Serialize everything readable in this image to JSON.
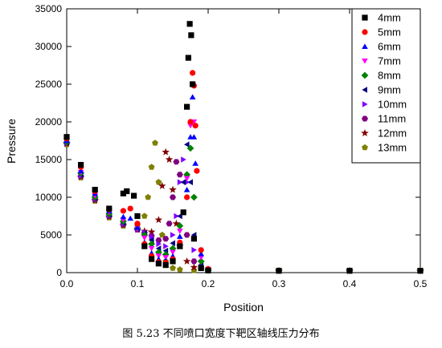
{
  "caption": "图 5.23 不同喷口宽度下靶区轴线压力分布",
  "chart_data": {
    "type": "scatter",
    "xlabel": "Position",
    "ylabel": "Pressure",
    "xlim": [
      0.0,
      0.5
    ],
    "ylim": [
      0,
      35000
    ],
    "xticks": [
      0.0,
      0.1,
      0.2,
      0.3,
      0.4,
      0.5
    ],
    "xtick_labels": [
      "0.0",
      "0.1",
      "0.2",
      "0.3",
      "0.4",
      "0.5"
    ],
    "yticks": [
      0,
      5000,
      10000,
      15000,
      20000,
      25000,
      30000,
      35000
    ],
    "ytick_labels": [
      "0",
      "5000",
      "10000",
      "15000",
      "20000",
      "25000",
      "30000",
      "35000"
    ],
    "grid": false,
    "legend_position": "top-right",
    "series": [
      {
        "name": "4mm",
        "color": "#000000",
        "marker": "square",
        "x": [
          0.0,
          0.02,
          0.04,
          0.06,
          0.08,
          0.085,
          0.095,
          0.1,
          0.11,
          0.12,
          0.13,
          0.14,
          0.15,
          0.16,
          0.165,
          0.17,
          0.172,
          0.174,
          0.176,
          0.178,
          0.18,
          0.19,
          0.2,
          0.3,
          0.4,
          0.5
        ],
        "y": [
          18000,
          14300,
          11000,
          8500,
          10500,
          10800,
          10200,
          7500,
          3500,
          1800,
          1200,
          1000,
          1500,
          3500,
          8000,
          22000,
          28500,
          33000,
          31500,
          25000,
          4500,
          600,
          300,
          250,
          250,
          250
        ]
      },
      {
        "name": "5mm",
        "color": "#ff0000",
        "marker": "circle",
        "x": [
          0.0,
          0.02,
          0.04,
          0.06,
          0.08,
          0.09,
          0.1,
          0.11,
          0.12,
          0.13,
          0.14,
          0.15,
          0.16,
          0.17,
          0.175,
          0.178,
          0.18,
          0.182,
          0.184,
          0.19,
          0.2,
          0.3,
          0.4,
          0.5
        ],
        "y": [
          17800,
          14000,
          10800,
          8400,
          8200,
          8500,
          6500,
          3800,
          2200,
          1400,
          1300,
          1800,
          4000,
          10000,
          20000,
          26500,
          24800,
          19500,
          13500,
          3000,
          500,
          250,
          250,
          250
        ]
      },
      {
        "name": "6mm",
        "color": "#0000ff",
        "marker": "triangle-up",
        "x": [
          0.0,
          0.02,
          0.04,
          0.06,
          0.08,
          0.09,
          0.1,
          0.11,
          0.12,
          0.13,
          0.14,
          0.15,
          0.16,
          0.17,
          0.175,
          0.178,
          0.18,
          0.182,
          0.19,
          0.2,
          0.3,
          0.4,
          0.5
        ],
        "y": [
          17500,
          13500,
          10500,
          8200,
          7400,
          7200,
          6000,
          4000,
          2600,
          1800,
          1600,
          2200,
          4800,
          11000,
          18000,
          23300,
          18000,
          14500,
          2500,
          400,
          250,
          250,
          250
        ]
      },
      {
        "name": "7mm",
        "color": "#ff00ff",
        "marker": "triangle-down",
        "x": [
          0.0,
          0.02,
          0.04,
          0.06,
          0.08,
          0.1,
          0.11,
          0.12,
          0.13,
          0.14,
          0.15,
          0.16,
          0.17,
          0.175,
          0.18,
          0.19,
          0.2,
          0.3,
          0.4,
          0.5
        ],
        "y": [
          17500,
          13300,
          10200,
          8000,
          7000,
          5800,
          4600,
          3200,
          2200,
          2000,
          2700,
          5500,
          12500,
          19500,
          20000,
          2000,
          400,
          250,
          250,
          250
        ]
      },
      {
        "name": "8mm",
        "color": "#008000",
        "marker": "diamond",
        "x": [
          0.0,
          0.02,
          0.04,
          0.06,
          0.08,
          0.1,
          0.11,
          0.12,
          0.13,
          0.14,
          0.15,
          0.16,
          0.17,
          0.175,
          0.18,
          0.19,
          0.2,
          0.3,
          0.4,
          0.5
        ],
        "y": [
          17300,
          13200,
          10000,
          7800,
          6800,
          5900,
          5000,
          3800,
          2700,
          2400,
          3200,
          6200,
          13000,
          16500,
          10000,
          1500,
          300,
          250,
          250,
          250
        ]
      },
      {
        "name": "9mm",
        "color": "#000080",
        "marker": "triangle-left",
        "x": [
          0.0,
          0.02,
          0.04,
          0.06,
          0.08,
          0.1,
          0.11,
          0.12,
          0.13,
          0.14,
          0.15,
          0.16,
          0.165,
          0.17,
          0.175,
          0.18,
          0.19,
          0.2,
          0.3,
          0.4,
          0.5
        ],
        "y": [
          17300,
          13000,
          9900,
          7700,
          6600,
          5800,
          5200,
          4300,
          3200,
          2900,
          3900,
          7500,
          12000,
          17000,
          12000,
          5000,
          1000,
          300,
          250,
          250,
          250
        ]
      },
      {
        "name": "10mm",
        "color": "#8000ff",
        "marker": "triangle-right",
        "x": [
          0.0,
          0.02,
          0.04,
          0.06,
          0.08,
          0.1,
          0.11,
          0.12,
          0.13,
          0.14,
          0.15,
          0.155,
          0.16,
          0.165,
          0.17,
          0.18,
          0.19,
          0.2,
          0.3,
          0.4,
          0.5
        ],
        "y": [
          17200,
          12900,
          9800,
          7600,
          6500,
          5800,
          5300,
          4700,
          3800,
          3500,
          5000,
          7500,
          12000,
          15000,
          12000,
          3000,
          800,
          300,
          250,
          250,
          250
        ]
      },
      {
        "name": "11mm",
        "color": "#800080",
        "marker": "hexagon",
        "x": [
          0.0,
          0.02,
          0.04,
          0.06,
          0.08,
          0.1,
          0.11,
          0.12,
          0.13,
          0.14,
          0.145,
          0.15,
          0.155,
          0.16,
          0.17,
          0.18,
          0.19,
          0.2,
          0.3,
          0.4,
          0.5
        ],
        "y": [
          17200,
          12800,
          9700,
          7500,
          6400,
          5700,
          5300,
          4900,
          4300,
          4500,
          6500,
          10000,
          14700,
          13000,
          5000,
          1500,
          600,
          300,
          250,
          250,
          250
        ]
      },
      {
        "name": "12mm",
        "color": "#800000",
        "marker": "star",
        "x": [
          0.0,
          0.02,
          0.04,
          0.06,
          0.08,
          0.1,
          0.11,
          0.12,
          0.13,
          0.135,
          0.14,
          0.145,
          0.15,
          0.155,
          0.16,
          0.17,
          0.18,
          0.2,
          0.3,
          0.4,
          0.5
        ],
        "y": [
          17100,
          12700,
          9600,
          7400,
          6300,
          5700,
          5500,
          5400,
          7000,
          11500,
          16000,
          15000,
          11000,
          6500,
          3500,
          1500,
          700,
          300,
          250,
          250,
          250
        ]
      },
      {
        "name": "13mm",
        "color": "#808000",
        "marker": "pentagon",
        "x": [
          0.0,
          0.02,
          0.04,
          0.06,
          0.08,
          0.1,
          0.11,
          0.115,
          0.12,
          0.125,
          0.13,
          0.135,
          0.14,
          0.15,
          0.16,
          0.18,
          0.2,
          0.3,
          0.4,
          0.5
        ],
        "y": [
          17000,
          12600,
          9500,
          7300,
          6200,
          6300,
          7500,
          10000,
          14000,
          17200,
          12000,
          5000,
          1500,
          600,
          400,
          300,
          280,
          250,
          250,
          250
        ]
      }
    ]
  }
}
